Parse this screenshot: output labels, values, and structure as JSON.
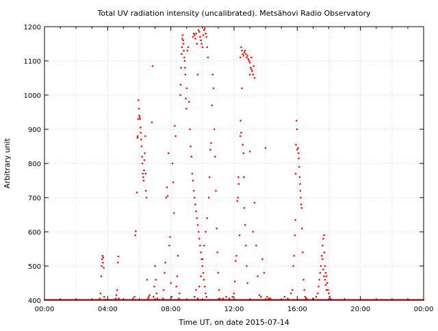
{
  "chart_data": {
    "type": "scatter",
    "title": "Total UV radiation intensity (uncalibrated). Metsähovi Radio Observatory",
    "xlabel": "Time UT, on date 2015-07-14",
    "ylabel": "Arbitrary unit",
    "x_unit": "hours UT",
    "xlim": [
      0,
      24
    ],
    "ylim": [
      400,
      1200
    ],
    "grid": true,
    "legend": "none",
    "point_color": "#ff0000",
    "xticks": [
      {
        "value": 0,
        "label": "00:00"
      },
      {
        "value": 4,
        "label": "04:00"
      },
      {
        "value": 8,
        "label": "08:00"
      },
      {
        "value": 12,
        "label": "12:00"
      },
      {
        "value": 16,
        "label": "16:00"
      },
      {
        "value": 20,
        "label": "20:00"
      },
      {
        "value": 24,
        "label": "00:00"
      }
    ],
    "yticks": [
      {
        "value": 400,
        "label": "400"
      },
      {
        "value": 500,
        "label": "500"
      },
      {
        "value": 600,
        "label": "600"
      },
      {
        "value": 700,
        "label": "700"
      },
      {
        "value": 800,
        "label": "800"
      },
      {
        "value": 900,
        "label": "900"
      },
      {
        "value": 1000,
        "label": "1000"
      },
      {
        "value": 1100,
        "label": "1100"
      },
      {
        "value": 1200,
        "label": "1200"
      }
    ],
    "series": [
      {
        "points": [
          [
            3.5,
            405
          ],
          [
            3.55,
            420
          ],
          [
            3.6,
            470
          ],
          [
            3.62,
            500
          ],
          [
            3.65,
            520
          ],
          [
            3.68,
            530
          ],
          [
            3.7,
            510
          ],
          [
            3.72,
            525
          ],
          [
            3.75,
            495
          ],
          [
            3.78,
            410
          ],
          [
            3.85,
            402
          ],
          [
            4.5,
            405
          ],
          [
            4.55,
            415
          ],
          [
            4.6,
            430
          ],
          [
            4.65,
            510
          ],
          [
            4.68,
            528
          ],
          [
            4.7,
            405
          ],
          [
            5.6,
            405
          ],
          [
            5.7,
            410
          ],
          [
            5.75,
            590
          ],
          [
            5.78,
            602
          ],
          [
            5.85,
            715
          ],
          [
            5.88,
            875
          ],
          [
            5.9,
            880
          ],
          [
            5.92,
            930
          ],
          [
            5.95,
            985
          ],
          [
            5.98,
            960
          ],
          [
            6.0,
            940
          ],
          [
            6.02,
            935
          ],
          [
            6.05,
            930
          ],
          [
            6.08,
            905
          ],
          [
            6.1,
            890
          ],
          [
            6.12,
            870
          ],
          [
            6.15,
            850
          ],
          [
            6.18,
            820
          ],
          [
            6.2,
            800
          ],
          [
            6.22,
            770
          ],
          [
            6.25,
            760
          ],
          [
            6.28,
            750
          ],
          [
            6.3,
            780
          ],
          [
            6.32,
            810
          ],
          [
            6.35,
            830
          ],
          [
            6.38,
            880
          ],
          [
            6.4,
            770
          ],
          [
            6.42,
            720
          ],
          [
            6.45,
            700
          ],
          [
            6.5,
            460
          ],
          [
            6.55,
            405
          ],
          [
            6.6,
            410
          ],
          [
            6.65,
            415
          ],
          [
            6.8,
            920
          ],
          [
            6.85,
            1085
          ],
          [
            6.9,
            410
          ],
          [
            6.95,
            440
          ],
          [
            7.0,
            500
          ],
          [
            7.05,
            460
          ],
          [
            7.1,
            420
          ],
          [
            7.15,
            405
          ],
          [
            7.5,
            405
          ],
          [
            7.55,
            430
          ],
          [
            7.6,
            480
          ],
          [
            7.65,
            510
          ],
          [
            7.7,
            700
          ],
          [
            7.75,
            730
          ],
          [
            7.8,
            705
          ],
          [
            7.85,
            830
          ],
          [
            7.9,
            560
          ],
          [
            7.95,
            585
          ],
          [
            8.0,
            450
          ],
          [
            8.05,
            410
          ],
          [
            8.1,
            800
          ],
          [
            8.15,
            745
          ],
          [
            8.2,
            655
          ],
          [
            8.25,
            910
          ],
          [
            8.3,
            880
          ],
          [
            8.35,
            440
          ],
          [
            8.4,
            470
          ],
          [
            8.45,
            530
          ],
          [
            8.5,
            405
          ],
          [
            8.55,
            420
          ],
          [
            8.6,
            1000
          ],
          [
            8.62,
            1030
          ],
          [
            8.65,
            1080
          ],
          [
            8.68,
            1120
          ],
          [
            8.7,
            1140
          ],
          [
            8.72,
            1165
          ],
          [
            8.75,
            1175
          ],
          [
            8.78,
            1160
          ],
          [
            8.8,
            1150
          ],
          [
            8.82,
            1130
          ],
          [
            8.85,
            1110
          ],
          [
            8.88,
            1100
          ],
          [
            8.9,
            1080
          ],
          [
            8.92,
            1060
          ],
          [
            8.95,
            990
          ],
          [
            8.98,
            960
          ],
          [
            9.0,
            1020
          ],
          [
            9.05,
            1130
          ],
          [
            9.1,
            1140
          ],
          [
            9.15,
            980
          ],
          [
            9.2,
            900
          ],
          [
            9.25,
            850
          ],
          [
            9.3,
            820
          ],
          [
            9.35,
            770
          ],
          [
            9.4,
            750
          ],
          [
            9.45,
            720
          ],
          [
            9.5,
            700
          ],
          [
            9.55,
            680
          ],
          [
            9.6,
            660
          ],
          [
            9.65,
            640
          ],
          [
            9.7,
            620
          ],
          [
            9.75,
            600
          ],
          [
            9.8,
            580
          ],
          [
            9.85,
            560
          ],
          [
            9.9,
            540
          ],
          [
            9.95,
            520
          ],
          [
            10.0,
            500
          ],
          [
            10.05,
            480
          ],
          [
            10.1,
            460
          ],
          [
            10.15,
            440
          ],
          [
            10.2,
            420
          ],
          [
            10.25,
            410
          ],
          [
            9.4,
            1170
          ],
          [
            9.45,
            1180
          ],
          [
            9.5,
            1175
          ],
          [
            9.55,
            1165
          ],
          [
            9.6,
            1180
          ],
          [
            9.65,
            1150
          ],
          [
            9.7,
            1060
          ],
          [
            9.75,
            1190
          ],
          [
            9.8,
            1185
          ],
          [
            9.85,
            1170
          ],
          [
            9.9,
            1160
          ],
          [
            9.95,
            1150
          ],
          [
            10.0,
            1140
          ],
          [
            10.05,
            1175
          ],
          [
            10.1,
            1190
          ],
          [
            10.15,
            1195
          ],
          [
            10.2,
            1180
          ],
          [
            10.25,
            1170
          ],
          [
            10.3,
            1140
          ],
          [
            10.35,
            1110
          ],
          [
            9.5,
            410
          ],
          [
            9.6,
            430
          ],
          [
            9.7,
            405
          ],
          [
            9.8,
            440
          ],
          [
            9.9,
            470
          ],
          [
            10.0,
            520
          ],
          [
            10.1,
            560
          ],
          [
            10.2,
            600
          ],
          [
            10.3,
            640
          ],
          [
            10.4,
            700
          ],
          [
            10.45,
            760
          ],
          [
            10.5,
            840
          ],
          [
            10.55,
            860
          ],
          [
            10.6,
            970
          ],
          [
            10.65,
            1060
          ],
          [
            10.7,
            1020
          ],
          [
            10.75,
            900
          ],
          [
            10.8,
            820
          ],
          [
            10.85,
            720
          ],
          [
            10.9,
            610
          ],
          [
            10.95,
            540
          ],
          [
            11.0,
            480
          ],
          [
            11.05,
            430
          ],
          [
            11.1,
            405
          ],
          [
            11.3,
            405
          ],
          [
            11.5,
            410
          ],
          [
            11.7,
            405
          ],
          [
            11.9,
            410
          ],
          [
            12.0,
            420
          ],
          [
            12.05,
            455
          ],
          [
            12.1,
            515
          ],
          [
            12.15,
            530
          ],
          [
            12.2,
            690
          ],
          [
            12.25,
            700
          ],
          [
            12.28,
            760
          ],
          [
            12.3,
            740
          ],
          [
            12.35,
            590
          ],
          [
            12.4,
            880
          ],
          [
            12.42,
            925
          ],
          [
            12.45,
            890
          ],
          [
            12.5,
            1020
          ],
          [
            12.55,
            855
          ],
          [
            12.6,
            830
          ],
          [
            12.62,
            760
          ],
          [
            12.65,
            670
          ],
          [
            12.7,
            620
          ],
          [
            12.75,
            560
          ],
          [
            12.8,
            500
          ],
          [
            12.85,
            450
          ],
          [
            12.4,
            1110
          ],
          [
            12.45,
            1140
          ],
          [
            12.5,
            1130
          ],
          [
            12.55,
            1120
          ],
          [
            12.6,
            1115
          ],
          [
            12.65,
            1125
          ],
          [
            12.7,
            1130
          ],
          [
            12.75,
            1120
          ],
          [
            12.8,
            1110
          ],
          [
            12.85,
            1115
          ],
          [
            12.9,
            1105
          ],
          [
            12.95,
            1100
          ],
          [
            13.0,
            1095
          ],
          [
            13.05,
            1080
          ],
          [
            13.1,
            1075
          ],
          [
            13.15,
            1070
          ],
          [
            13.2,
            1060
          ],
          [
            13.25,
            1085
          ],
          [
            13.3,
            1050
          ],
          [
            13.1,
            1110
          ],
          [
            13.0,
            1060
          ],
          [
            13.0,
            835
          ],
          [
            13.2,
            600
          ],
          [
            13.3,
            685
          ],
          [
            13.4,
            560
          ],
          [
            13.5,
            470
          ],
          [
            13.6,
            415
          ],
          [
            13.7,
            410
          ],
          [
            13.8,
            520
          ],
          [
            13.9,
            480
          ],
          [
            14.0,
            845
          ],
          [
            14.1,
            410
          ],
          [
            14.2,
            405
          ],
          [
            14.3,
            405
          ],
          [
            15.2,
            410
          ],
          [
            15.4,
            405
          ],
          [
            15.6,
            420
          ],
          [
            15.7,
            430
          ],
          [
            15.75,
            500
          ],
          [
            15.8,
            530
          ],
          [
            15.85,
            590
          ],
          [
            15.88,
            635
          ],
          [
            15.9,
            770
          ],
          [
            15.92,
            855
          ],
          [
            15.95,
            925
          ],
          [
            15.98,
            900
          ],
          [
            16.0,
            840
          ],
          [
            16.05,
            845
          ],
          [
            16.08,
            830
          ],
          [
            16.1,
            815
          ],
          [
            16.12,
            790
          ],
          [
            16.15,
            760
          ],
          [
            16.18,
            740
          ],
          [
            16.2,
            720
          ],
          [
            16.22,
            700
          ],
          [
            16.25,
            680
          ],
          [
            16.28,
            670
          ],
          [
            16.3,
            610
          ],
          [
            16.35,
            540
          ],
          [
            16.4,
            460
          ],
          [
            16.45,
            430
          ],
          [
            16.5,
            410
          ],
          [
            16.55,
            405
          ],
          [
            16.6,
            405
          ],
          [
            17.0,
            405
          ],
          [
            17.2,
            410
          ],
          [
            17.3,
            420
          ],
          [
            17.35,
            440
          ],
          [
            17.4,
            460
          ],
          [
            17.45,
            480
          ],
          [
            17.5,
            500
          ],
          [
            17.55,
            530
          ],
          [
            17.6,
            560
          ],
          [
            17.65,
            580
          ],
          [
            17.7,
            590
          ],
          [
            17.72,
            540
          ],
          [
            17.75,
            500
          ],
          [
            17.8,
            480
          ],
          [
            17.85,
            470
          ],
          [
            17.9,
            450
          ],
          [
            17.95,
            430
          ],
          [
            18.0,
            420
          ],
          [
            18.05,
            410
          ],
          [
            18.1,
            405
          ],
          [
            17.6,
            520
          ],
          [
            17.65,
            490
          ],
          [
            17.7,
            470
          ],
          [
            17.75,
            460
          ],
          [
            17.8,
            445
          ],
          [
            17.85,
            430
          ]
        ]
      }
    ]
  }
}
